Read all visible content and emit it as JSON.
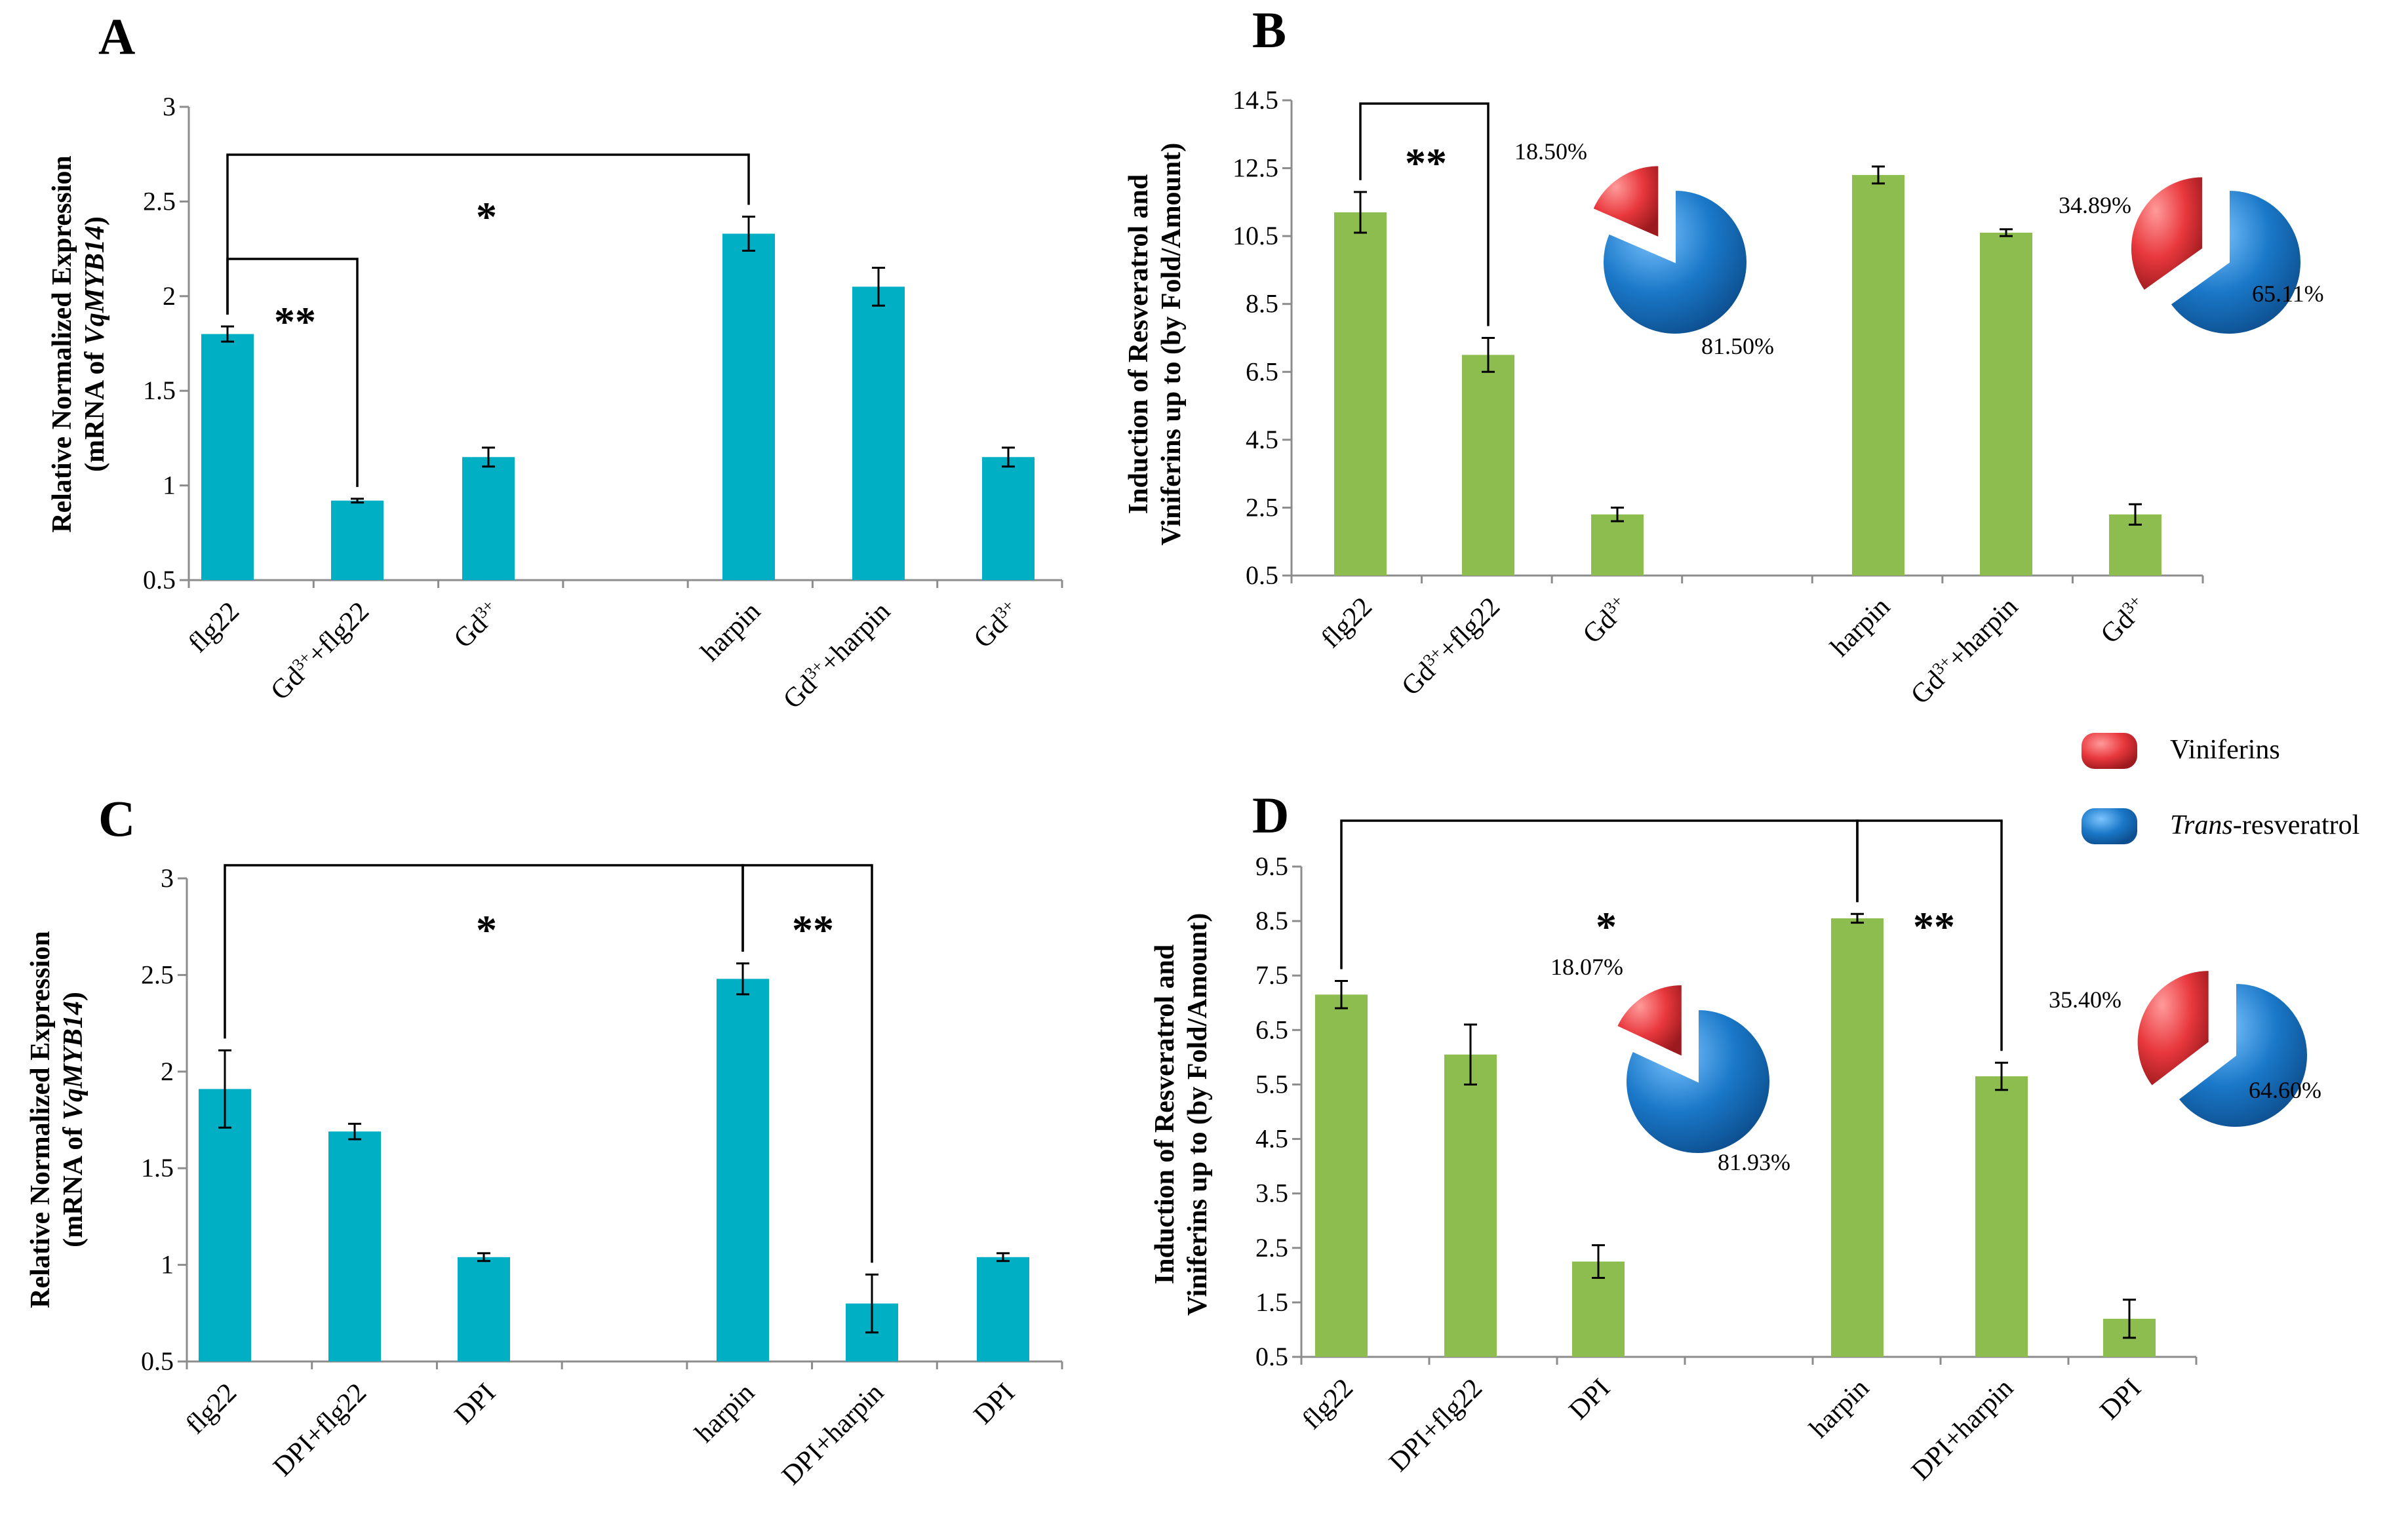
{
  "colors": {
    "teal": "#00AFC3",
    "green": "#8CBD4E",
    "red": "#E8383D",
    "blue": "#1A78C8"
  },
  "legend": {
    "viniferins": "Viniferins",
    "trans_italic": "Trans",
    "trans_rest": "-resveratrol"
  },
  "chart_data": [
    {
      "panel": "A",
      "type": "bar",
      "ylabel_line1": "Relative Normalized Expression",
      "ylabel_line2_prefix": "(mRNA of ",
      "ylabel_line2_gene": "VqMYB14",
      "ylabel_line2_suffix": ")",
      "ylim": [
        0.5,
        3
      ],
      "yticks": [
        "0.5",
        "1",
        "1.5",
        "2",
        "2.5",
        "3"
      ],
      "categories": [
        {
          "base": "flg22"
        },
        {
          "base": "Gd",
          "sup": "3+",
          "rest": "+flg22"
        },
        {
          "base": "Gd",
          "sup": "3+"
        },
        {
          "base": "harpin"
        },
        {
          "base": "Gd",
          "sup": "3+",
          "rest": "+harpin"
        },
        {
          "base": "Gd",
          "sup": "3+"
        }
      ],
      "values": [
        1.8,
        0.92,
        1.15,
        2.33,
        2.05,
        1.15
      ],
      "errors": [
        0.04,
        0.01,
        0.05,
        0.09,
        0.1,
        0.05
      ],
      "significance": [
        {
          "from": 0,
          "to": 3,
          "label": "*"
        },
        {
          "from": 0,
          "to": 1,
          "label": "**"
        }
      ]
    },
    {
      "panel": "B",
      "type": "bar",
      "ylabel_line1": "Induction of Resveratrol and",
      "ylabel_line2": "Viniferins up to (by Fold/Amount)",
      "ylim": [
        0.5,
        14.5
      ],
      "yticks": [
        "0.5",
        "2.5",
        "4.5",
        "6.5",
        "8.5",
        "10.5",
        "12.5",
        "14.5"
      ],
      "categories": [
        {
          "base": "flg22"
        },
        {
          "base": "Gd",
          "sup": "3+",
          "rest": "+flg22"
        },
        {
          "base": "Gd",
          "sup": "3+"
        },
        {
          "base": "harpin"
        },
        {
          "base": "Gd",
          "sup": "3+",
          "rest": "+harpin"
        },
        {
          "base": "Gd",
          "sup": "3+"
        }
      ],
      "values": [
        11.2,
        7.0,
        2.3,
        12.3,
        10.6,
        2.3
      ],
      "errors": [
        0.6,
        0.5,
        0.2,
        0.25,
        0.1,
        0.3
      ],
      "significance": [
        {
          "from": 0,
          "to": 1,
          "label": "**"
        }
      ],
      "pies": [
        {
          "viniferins": 18.5,
          "trans_resveratrol": 81.5,
          "label_viniferins": "18.50%",
          "label_trans": "81.50%"
        },
        {
          "viniferins": 34.89,
          "trans_resveratrol": 65.11,
          "label_viniferins": "34.89%",
          "label_trans": "65.11%"
        }
      ]
    },
    {
      "panel": "C",
      "type": "bar",
      "ylabel_line1": "Relative Normalized Expression",
      "ylabel_line2_prefix": "(mRNA of ",
      "ylabel_line2_gene": "VqMYB14",
      "ylabel_line2_suffix": ")",
      "ylim": [
        0.5,
        3
      ],
      "yticks": [
        "0.5",
        "1",
        "1.5",
        "2",
        "2.5",
        "3"
      ],
      "categories": [
        {
          "base": "flg22"
        },
        {
          "base": "DPI+flg22"
        },
        {
          "base": "DPI"
        },
        {
          "base": "harpin"
        },
        {
          "base": "DPI+harpin"
        },
        {
          "base": "DPI"
        }
      ],
      "values": [
        1.91,
        1.69,
        1.04,
        2.48,
        0.8,
        1.04
      ],
      "errors": [
        0.2,
        0.04,
        0.02,
        0.08,
        0.15,
        0.02
      ],
      "significance": [
        {
          "from": 0,
          "to": 3,
          "label": "*"
        },
        {
          "from": 3,
          "to": 4,
          "label": "**"
        }
      ]
    },
    {
      "panel": "D",
      "type": "bar",
      "ylabel_line1": "Induction of Resveratrol and",
      "ylabel_line2": "Viniferins up to (by Fold/Amount)",
      "ylim": [
        0.5,
        9.5
      ],
      "yticks": [
        "0.5",
        "1.5",
        "2.5",
        "3.5",
        "4.5",
        "5.5",
        "6.5",
        "7.5",
        "8.5",
        "9.5"
      ],
      "categories": [
        {
          "base": "flg22"
        },
        {
          "base": "DPI+flg22"
        },
        {
          "base": "DPI"
        },
        {
          "base": "harpin"
        },
        {
          "base": "DPI+harpin"
        },
        {
          "base": "DPI"
        }
      ],
      "values": [
        7.15,
        6.05,
        2.25,
        8.55,
        5.65,
        1.2
      ],
      "errors": [
        0.25,
        0.55,
        0.3,
        0.08,
        0.25,
        0.35
      ],
      "significance": [
        {
          "from": 0,
          "to": 3,
          "label": "*"
        },
        {
          "from": 3,
          "to": 4,
          "label": "**"
        }
      ],
      "pies": [
        {
          "viniferins": 18.07,
          "trans_resveratrol": 81.93,
          "label_viniferins": "18.07%",
          "label_trans": "81.93%"
        },
        {
          "viniferins": 35.4,
          "trans_resveratrol": 64.6,
          "label_viniferins": "35.40%",
          "label_trans": "64.60%"
        }
      ]
    }
  ]
}
